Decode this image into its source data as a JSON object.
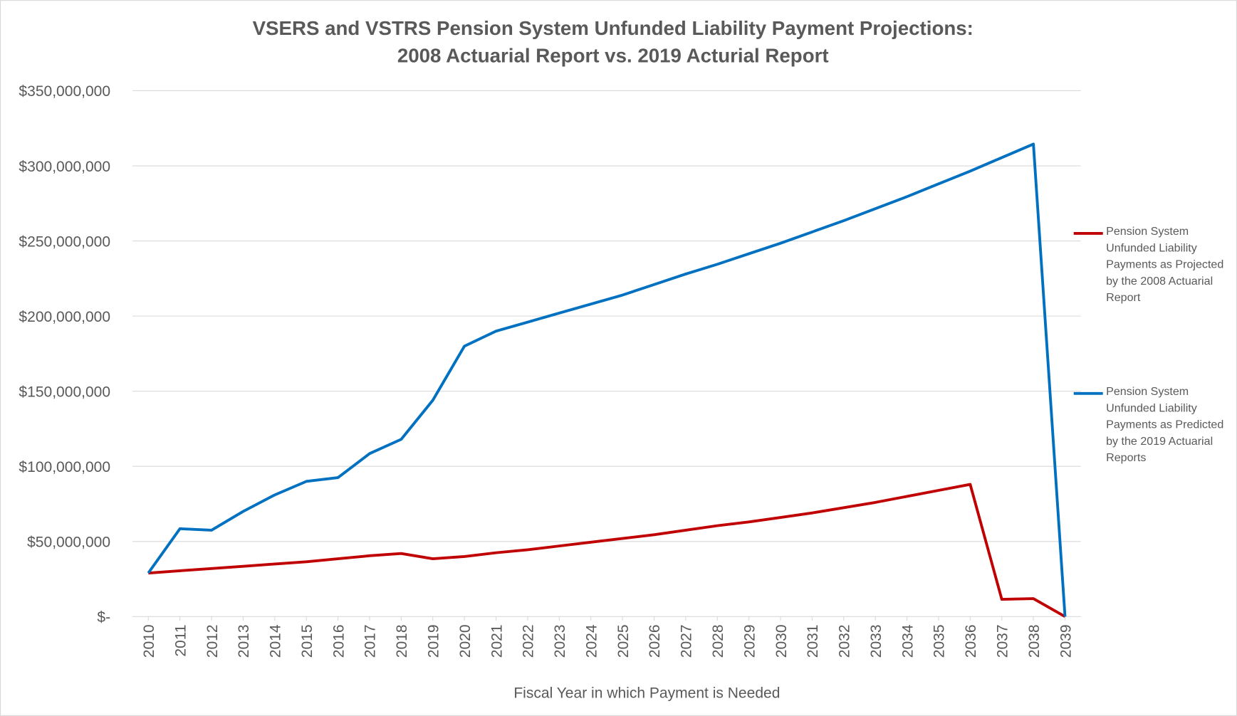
{
  "chart_data": {
    "type": "line",
    "title": [
      "VSERS and VSTRS Pension System Unfunded Liability Payment Projections:",
      "2008 Actuarial Report vs. 2019 Acturial Report"
    ],
    "x_label": "Fiscal Year in which Payment is Needed",
    "x": [
      2010,
      2011,
      2012,
      2013,
      2014,
      2015,
      2016,
      2017,
      2018,
      2019,
      2020,
      2021,
      2022,
      2023,
      2024,
      2025,
      2026,
      2027,
      2028,
      2029,
      2030,
      2031,
      2032,
      2033,
      2034,
      2035,
      2036,
      2037,
      2038,
      2039
    ],
    "xlim": [
      2010,
      2039
    ],
    "ylim": [
      0,
      350000000
    ],
    "yticks": [
      {
        "value": 0,
        "label": "$-"
      },
      {
        "value": 50000000,
        "label": "$50,000,000"
      },
      {
        "value": 100000000,
        "label": "$100,000,000"
      },
      {
        "value": 150000000,
        "label": "$150,000,000"
      },
      {
        "value": 200000000,
        "label": "$200,000,000"
      },
      {
        "value": 250000000,
        "label": "$250,000,000"
      },
      {
        "value": 300000000,
        "label": "$300,000,000"
      },
      {
        "value": 350000000,
        "label": "$350,000,000"
      }
    ],
    "grid": true,
    "legend": "right",
    "series": [
      {
        "name": "Pension System Unfunded Liability Payments as Projected by the 2008 Actuarial Report",
        "color": "#c00000",
        "values": [
          29000000,
          30500000,
          32000000,
          33500000,
          35000000,
          36500000,
          38500000,
          40500000,
          42000000,
          38500000,
          40000000,
          42500000,
          44500000,
          47000000,
          49500000,
          52000000,
          54500000,
          57500000,
          60500000,
          63000000,
          66000000,
          69000000,
          72500000,
          76000000,
          80000000,
          84000000,
          88000000,
          11500000,
          12000000,
          0
        ]
      },
      {
        "name": "Pension System Unfunded Liability Payments as Predicted by the 2019 Actuarial Reports",
        "color": "#0070c0",
        "values": [
          29000000,
          58500000,
          57500000,
          70000000,
          81000000,
          90000000,
          92500000,
          108500000,
          118000000,
          144000000,
          180000000,
          190000000,
          196000000,
          202000000,
          208000000,
          214000000,
          221000000,
          228000000,
          234500000,
          241500000,
          248500000,
          256000000,
          263500000,
          271500000,
          279500000,
          288000000,
          296500000,
          305500000,
          314500000,
          0
        ]
      }
    ]
  }
}
